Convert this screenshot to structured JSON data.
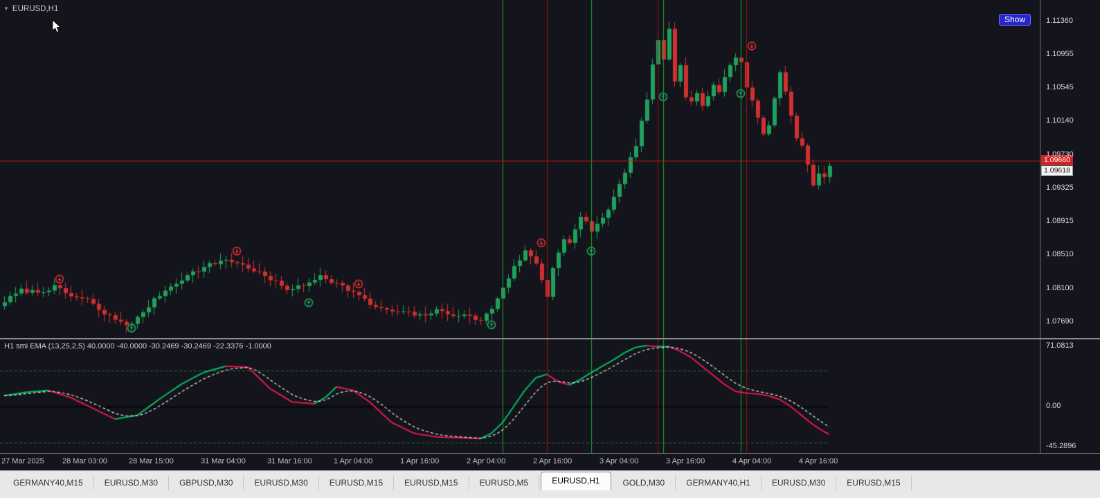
{
  "chart": {
    "symbol_label": "EURUSD,H1",
    "collapse_icon": "▼",
    "show_button_label": "Show",
    "bid_label": "1.09618",
    "red_line_label": "1.09660",
    "price_ticks": [
      {
        "text": "1.11360",
        "value": 1.1136
      },
      {
        "text": "1.10955",
        "value": 1.10955
      },
      {
        "text": "1.10545",
        "value": 1.10545
      },
      {
        "text": "1.10140",
        "value": 1.1014
      },
      {
        "text": "1.09730",
        "value": 1.0973
      },
      {
        "text": "1.09325",
        "value": 1.09325
      },
      {
        "text": "1.08915",
        "value": 1.08915
      },
      {
        "text": "1.08510",
        "value": 1.0851
      },
      {
        "text": "1.08100",
        "value": 1.081
      },
      {
        "text": "1.07690",
        "value": 1.0769
      }
    ]
  },
  "indicator": {
    "label": "H1 smi  EMA (13,25,2,5) 40.0000 -40.0000 -30.2469 -30.2469 -22.3376 -1.0000",
    "axis_ticks": [
      {
        "text": "71.0813",
        "value": 71.0813
      },
      {
        "text": "0.00",
        "value": 0
      },
      {
        "text": "-45.2896",
        "value": -45.2896
      }
    ]
  },
  "time_axis": {
    "labels": [
      {
        "text": "27 Mar 2025",
        "index": 0
      },
      {
        "text": "28 Mar 03:00",
        "index": 11
      },
      {
        "text": "28 Mar 15:00",
        "index": 23
      },
      {
        "text": "31 Mar 04:00",
        "index": 36
      },
      {
        "text": "31 Mar 16:00",
        "index": 48
      },
      {
        "text": "1 Apr 04:00",
        "index": 60
      },
      {
        "text": "1 Apr 16:00",
        "index": 72
      },
      {
        "text": "2 Apr 04:00",
        "index": 84
      },
      {
        "text": "2 Apr 16:00",
        "index": 96
      },
      {
        "text": "3 Apr 04:00",
        "index": 108
      },
      {
        "text": "3 Apr 16:00",
        "index": 120
      },
      {
        "text": "4 Apr 04:00",
        "index": 132
      },
      {
        "text": "4 Apr 16:00",
        "index": 144
      }
    ]
  },
  "tabs": {
    "active_index": 7,
    "items": [
      "GERMANY40,M15",
      "EURUSD,M30",
      "GBPUSD,M30",
      "EURUSD,M30",
      "EURUSD,M15",
      "EURUSD,M15",
      "EURUSD,M5",
      "EURUSD,H1",
      "GOLD,M30",
      "GERMANY40,H1",
      "EURUSD,M30",
      "EURUSD,M15"
    ],
    "note": "active tab is EURUSD,H1"
  },
  "chart_data": {
    "type": "candlestick",
    "symbol": "EURUSD",
    "timeframe": "H1",
    "candle_count": 150,
    "price_axis_range": [
      1.075,
      1.1162
    ],
    "last_price": 1.09618,
    "red_line_price": 1.0966,
    "price_keypoints": [
      [
        0,
        1.0795
      ],
      [
        3,
        1.0808
      ],
      [
        6,
        1.0806
      ],
      [
        9,
        1.0812
      ],
      [
        12,
        1.0801
      ],
      [
        15,
        1.0796
      ],
      [
        18,
        1.0779
      ],
      [
        21,
        1.077
      ],
      [
        23,
        1.0766
      ],
      [
        25,
        1.0782
      ],
      [
        28,
        1.0803
      ],
      [
        31,
        1.0818
      ],
      [
        34,
        1.083
      ],
      [
        37,
        1.0839
      ],
      [
        40,
        1.0846
      ],
      [
        42,
        1.0841
      ],
      [
        45,
        1.0833
      ],
      [
        48,
        1.0821
      ],
      [
        51,
        1.081
      ],
      [
        54,
        1.0813
      ],
      [
        57,
        1.0827
      ],
      [
        60,
        1.0816
      ],
      [
        63,
        1.0806
      ],
      [
        66,
        1.0791
      ],
      [
        69,
        1.0783
      ],
      [
        72,
        1.0781
      ],
      [
        75,
        1.0777
      ],
      [
        78,
        1.0783
      ],
      [
        81,
        1.0779
      ],
      [
        84,
        1.0776
      ],
      [
        86,
        1.0771
      ],
      [
        88,
        1.0786
      ],
      [
        90,
        1.0812
      ],
      [
        92,
        1.0836
      ],
      [
        94,
        1.0856
      ],
      [
        96,
        1.0841
      ],
      [
        97,
        1.0822
      ],
      [
        98,
        1.08
      ],
      [
        99,
        1.0836
      ],
      [
        100,
        1.0856
      ],
      [
        101,
        1.0871
      ],
      [
        102,
        1.0866
      ],
      [
        103,
        1.0881
      ],
      [
        104,
        1.0896
      ],
      [
        105,
        1.0891
      ],
      [
        106,
        1.0881
      ],
      [
        108,
        1.0896
      ],
      [
        110,
        1.0921
      ],
      [
        112,
        1.0951
      ],
      [
        114,
        1.0986
      ],
      [
        116,
        1.1041
      ],
      [
        117,
        1.1081
      ],
      [
        118,
        1.1111
      ],
      [
        119,
        1.1091
      ],
      [
        120,
        1.1128
      ],
      [
        121,
        1.1061
      ],
      [
        122,
        1.1081
      ],
      [
        123,
        1.1041
      ],
      [
        124,
        1.1036
      ],
      [
        125,
        1.1051
      ],
      [
        126,
        1.1031
      ],
      [
        127,
        1.1046
      ],
      [
        128,
        1.1056
      ],
      [
        129,
        1.1051
      ],
      [
        130,
        1.1066
      ],
      [
        131,
        1.1081
      ],
      [
        132,
        1.1091
      ],
      [
        133,
        1.1086
      ],
      [
        134,
        1.1056
      ],
      [
        135,
        1.1041
      ],
      [
        136,
        1.1021
      ],
      [
        137,
        1.1001
      ],
      [
        138,
        1.1011
      ],
      [
        139,
        1.1041
      ],
      [
        140,
        1.1076
      ],
      [
        141,
        1.1051
      ],
      [
        142,
        1.1021
      ],
      [
        143,
        1.0991
      ],
      [
        144,
        1.0986
      ],
      [
        145,
        1.0961
      ],
      [
        146,
        1.0936
      ],
      [
        147,
        1.0951
      ],
      [
        148,
        1.0946
      ],
      [
        149,
        1.0962
      ]
    ],
    "vlines": {
      "green": [
        90,
        106,
        119,
        133
      ],
      "red": [
        98,
        118,
        134
      ]
    },
    "signals": {
      "down": [
        [
          10,
          1.0822
        ],
        [
          42,
          1.0856
        ],
        [
          64,
          1.0816
        ],
        [
          97,
          1.0866
        ],
        [
          135,
          1.1106
        ]
      ],
      "up": [
        [
          23,
          1.0762
        ],
        [
          55,
          1.0793
        ],
        [
          88,
          1.0766
        ],
        [
          106,
          1.0856
        ],
        [
          119,
          1.1044
        ],
        [
          133,
          1.1048
        ]
      ]
    },
    "smi_axis_range": [
      -52,
      75
    ],
    "smi_levels": [
      40,
      -40
    ],
    "smi_keypoints": [
      [
        0,
        12
      ],
      [
        4,
        16
      ],
      [
        8,
        18
      ],
      [
        12,
        10
      ],
      [
        16,
        -2
      ],
      [
        20,
        -14
      ],
      [
        24,
        -10
      ],
      [
        28,
        8
      ],
      [
        32,
        25
      ],
      [
        36,
        38
      ],
      [
        40,
        45
      ],
      [
        44,
        44
      ],
      [
        48,
        20
      ],
      [
        52,
        5
      ],
      [
        56,
        3
      ],
      [
        58,
        10
      ],
      [
        60,
        22
      ],
      [
        63,
        18
      ],
      [
        66,
        5
      ],
      [
        70,
        -18
      ],
      [
        74,
        -30
      ],
      [
        78,
        -34
      ],
      [
        82,
        -35
      ],
      [
        86,
        -36
      ],
      [
        88,
        -30
      ],
      [
        90,
        -18
      ],
      [
        92,
        0
      ],
      [
        94,
        18
      ],
      [
        96,
        32
      ],
      [
        98,
        36
      ],
      [
        100,
        28
      ],
      [
        102,
        24
      ],
      [
        104,
        30
      ],
      [
        106,
        38
      ],
      [
        108,
        45
      ],
      [
        110,
        52
      ],
      [
        112,
        60
      ],
      [
        114,
        66
      ],
      [
        116,
        68
      ],
      [
        118,
        67
      ],
      [
        120,
        67
      ],
      [
        122,
        62
      ],
      [
        124,
        55
      ],
      [
        126,
        45
      ],
      [
        128,
        35
      ],
      [
        130,
        25
      ],
      [
        132,
        17
      ],
      [
        134,
        15
      ],
      [
        136,
        14
      ],
      [
        138,
        12
      ],
      [
        140,
        8
      ],
      [
        142,
        0
      ],
      [
        144,
        -10
      ],
      [
        146,
        -20
      ],
      [
        148,
        -28
      ],
      [
        149,
        -31
      ]
    ],
    "colors": {
      "bg": "#14141c",
      "up": "#1fa15c",
      "down": "#d03030",
      "vline_green": "#1fa51f",
      "vline_red": "#a01212",
      "price_line": "#e01010",
      "signal_down": "#e03030",
      "signal_up": "#1faa5f",
      "smi_up": "#00c060",
      "smi_down": "#e51a4f",
      "smi_signal": "#e8e8e8",
      "level": "#1e7a32",
      "zero": "#000000"
    }
  }
}
